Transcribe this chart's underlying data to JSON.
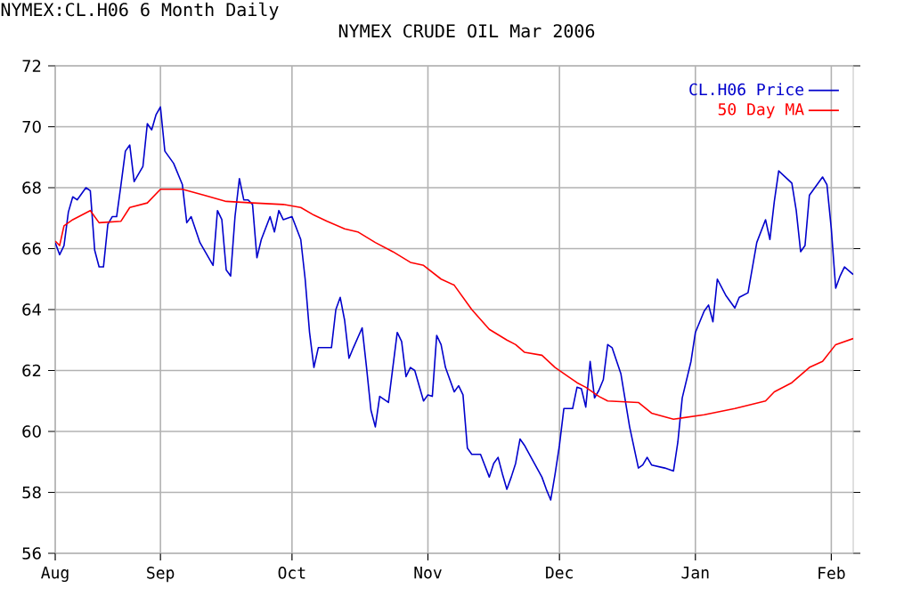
{
  "chart_data": {
    "type": "line",
    "title": "NYMEX CRUDE OIL Mar 2006",
    "annotations": [
      "NYMEX:CL.H06 6 Month Daily"
    ],
    "xlim": [
      "2005-08-08",
      "2006-02-06"
    ],
    "xticks": [
      {
        "value": "2005-08-08",
        "label": "Aug"
      },
      {
        "value": "2005-09-01",
        "label": "Sep"
      },
      {
        "value": "2005-10-01",
        "label": "Oct"
      },
      {
        "value": "2005-11-01",
        "label": "Nov"
      },
      {
        "value": "2005-12-01",
        "label": "Dec"
      },
      {
        "value": "2006-01-01",
        "label": "Jan"
      },
      {
        "value": "2006-02-01",
        "label": "Feb"
      }
    ],
    "ylim": [
      56,
      72
    ],
    "yticks": [
      56,
      58,
      60,
      62,
      64,
      66,
      68,
      70,
      72
    ],
    "grid": true,
    "legend": "top right",
    "marker": "none",
    "line_style": "solid",
    "series": [
      {
        "name": "CL.H06 Price",
        "color": "#0000cc",
        "x": [
          "2005-08-08",
          "2005-08-09",
          "2005-08-10",
          "2005-08-11",
          "2005-08-12",
          "2005-08-13",
          "2005-08-15",
          "2005-08-16",
          "2005-08-17",
          "2005-08-18",
          "2005-08-19",
          "2005-08-20",
          "2005-08-21",
          "2005-08-22",
          "2005-08-23",
          "2005-08-24",
          "2005-08-25",
          "2005-08-26",
          "2005-08-28",
          "2005-08-29",
          "2005-08-30",
          "2005-08-31",
          "2005-09-01",
          "2005-09-02",
          "2005-09-04",
          "2005-09-06",
          "2005-09-07",
          "2005-09-08",
          "2005-09-10",
          "2005-09-13",
          "2005-09-14",
          "2005-09-15",
          "2005-09-16",
          "2005-09-17",
          "2005-09-18",
          "2005-09-19",
          "2005-09-20",
          "2005-09-21",
          "2005-09-22",
          "2005-09-23",
          "2005-09-24",
          "2005-09-26",
          "2005-09-27",
          "2005-09-28",
          "2005-09-29",
          "2005-10-01",
          "2005-10-03",
          "2005-10-04",
          "2005-10-05",
          "2005-10-06",
          "2005-10-07",
          "2005-10-10",
          "2005-10-11",
          "2005-10-12",
          "2005-10-13",
          "2005-10-14",
          "2005-10-15",
          "2005-10-17",
          "2005-10-18",
          "2005-10-19",
          "2005-10-20",
          "2005-10-21",
          "2005-10-23",
          "2005-10-25",
          "2005-10-26",
          "2005-10-27",
          "2005-10-28",
          "2005-10-29",
          "2005-10-31",
          "2005-11-01",
          "2005-11-02",
          "2005-11-03",
          "2005-11-04",
          "2005-11-05",
          "2005-11-07",
          "2005-11-08",
          "2005-11-09",
          "2005-11-10",
          "2005-11-11",
          "2005-11-13",
          "2005-11-15",
          "2005-11-16",
          "2005-11-17",
          "2005-11-18",
          "2005-11-19",
          "2005-11-20",
          "2005-11-21",
          "2005-11-22",
          "2005-11-23",
          "2005-11-27",
          "2005-11-28",
          "2005-11-29",
          "2005-11-30",
          "2005-12-01",
          "2005-12-02",
          "2005-12-04",
          "2005-12-05",
          "2005-12-06",
          "2005-12-07",
          "2005-12-08",
          "2005-12-09",
          "2005-12-10",
          "2005-12-11",
          "2005-12-12",
          "2005-12-13",
          "2005-12-15",
          "2005-12-17",
          "2005-12-19",
          "2005-12-20",
          "2005-12-21",
          "2005-12-22",
          "2005-12-25",
          "2005-12-27",
          "2005-12-28",
          "2005-12-29",
          "2005-12-31",
          "2006-01-01",
          "2006-01-03",
          "2006-01-04",
          "2006-01-05",
          "2006-01-06",
          "2006-01-08",
          "2006-01-10",
          "2006-01-11",
          "2006-01-13",
          "2006-01-15",
          "2006-01-17",
          "2006-01-18",
          "2006-01-19",
          "2006-01-20",
          "2006-01-23",
          "2006-01-24",
          "2006-01-25",
          "2006-01-26",
          "2006-01-27",
          "2006-01-30",
          "2006-01-31",
          "2006-02-01",
          "2006-02-02",
          "2006-02-03",
          "2006-02-04",
          "2006-02-06"
        ],
        "values": [
          66.2,
          65.8,
          66.1,
          67.2,
          67.7,
          67.6,
          68.0,
          67.9,
          65.95,
          65.4,
          65.4,
          66.8,
          67.05,
          67.05,
          68.1,
          69.2,
          69.4,
          68.2,
          68.7,
          70.1,
          69.9,
          70.4,
          70.65,
          69.2,
          68.8,
          68.1,
          66.85,
          67.05,
          66.2,
          65.45,
          67.25,
          66.95,
          65.3,
          65.1,
          67.05,
          68.3,
          67.6,
          67.6,
          67.45,
          65.7,
          66.3,
          67.05,
          66.55,
          67.25,
          66.95,
          67.05,
          66.3,
          65.0,
          63.25,
          62.1,
          62.75,
          62.75,
          64.0,
          64.4,
          63.65,
          62.4,
          62.75,
          63.4,
          62.1,
          60.7,
          60.15,
          61.15,
          60.95,
          63.25,
          62.95,
          61.8,
          62.1,
          62.0,
          61.0,
          61.2,
          61.15,
          63.15,
          62.85,
          62.1,
          61.3,
          61.5,
          61.2,
          59.45,
          59.25,
          59.25,
          58.5,
          58.95,
          59.15,
          58.6,
          58.1,
          58.5,
          58.95,
          59.75,
          59.55,
          58.5,
          58.1,
          57.75,
          58.6,
          59.55,
          60.75,
          60.75,
          61.45,
          61.4,
          60.8,
          62.3,
          61.1,
          61.35,
          61.7,
          62.85,
          62.75,
          61.9,
          60.15,
          58.8,
          58.9,
          59.15,
          58.9,
          58.8,
          58.7,
          59.65,
          61.1,
          62.3,
          63.25,
          63.95,
          64.15,
          63.6,
          65.0,
          64.45,
          64.05,
          64.4,
          64.55,
          66.2,
          66.95,
          66.3,
          67.55,
          68.55,
          68.15,
          67.25,
          65.9,
          66.1,
          67.75,
          68.35,
          68.1,
          66.65,
          64.7,
          65.1,
          65.4,
          65.15
        ]
      },
      {
        "name": "50 Day MA",
        "color": "#ff0000",
        "x": [
          "2005-08-08",
          "2005-08-09",
          "2005-08-10",
          "2005-08-12",
          "2005-08-16",
          "2005-08-18",
          "2005-08-23",
          "2005-08-25",
          "2005-08-29",
          "2005-09-01",
          "2005-09-06",
          "2005-09-11",
          "2005-09-16",
          "2005-09-22",
          "2005-09-29",
          "2005-10-03",
          "2005-10-06",
          "2005-10-09",
          "2005-10-13",
          "2005-10-16",
          "2005-10-20",
          "2005-10-24",
          "2005-10-28",
          "2005-10-31",
          "2005-11-04",
          "2005-11-07",
          "2005-11-11",
          "2005-11-15",
          "2005-11-19",
          "2005-11-21",
          "2005-11-23",
          "2005-11-27",
          "2005-11-30",
          "2005-12-03",
          "2005-12-05",
          "2005-12-07",
          "2005-12-10",
          "2005-12-12",
          "2005-12-19",
          "2005-12-22",
          "2005-12-27",
          "2006-01-03",
          "2006-01-10",
          "2006-01-17",
          "2006-01-19",
          "2006-01-23",
          "2006-01-27",
          "2006-01-30",
          "2006-02-02",
          "2006-02-06"
        ],
        "values": [
          66.25,
          66.1,
          66.75,
          66.95,
          67.25,
          66.85,
          66.9,
          67.35,
          67.5,
          67.95,
          67.95,
          67.75,
          67.55,
          67.5,
          67.45,
          67.35,
          67.1,
          66.9,
          66.65,
          66.55,
          66.2,
          65.9,
          65.55,
          65.45,
          65.0,
          64.8,
          64.0,
          63.35,
          63.0,
          62.85,
          62.6,
          62.5,
          62.1,
          61.8,
          61.6,
          61.45,
          61.15,
          61.0,
          60.95,
          60.6,
          60.4,
          60.55,
          60.75,
          61.0,
          61.3,
          61.6,
          62.1,
          62.3,
          62.85,
          63.05
        ]
      }
    ]
  }
}
